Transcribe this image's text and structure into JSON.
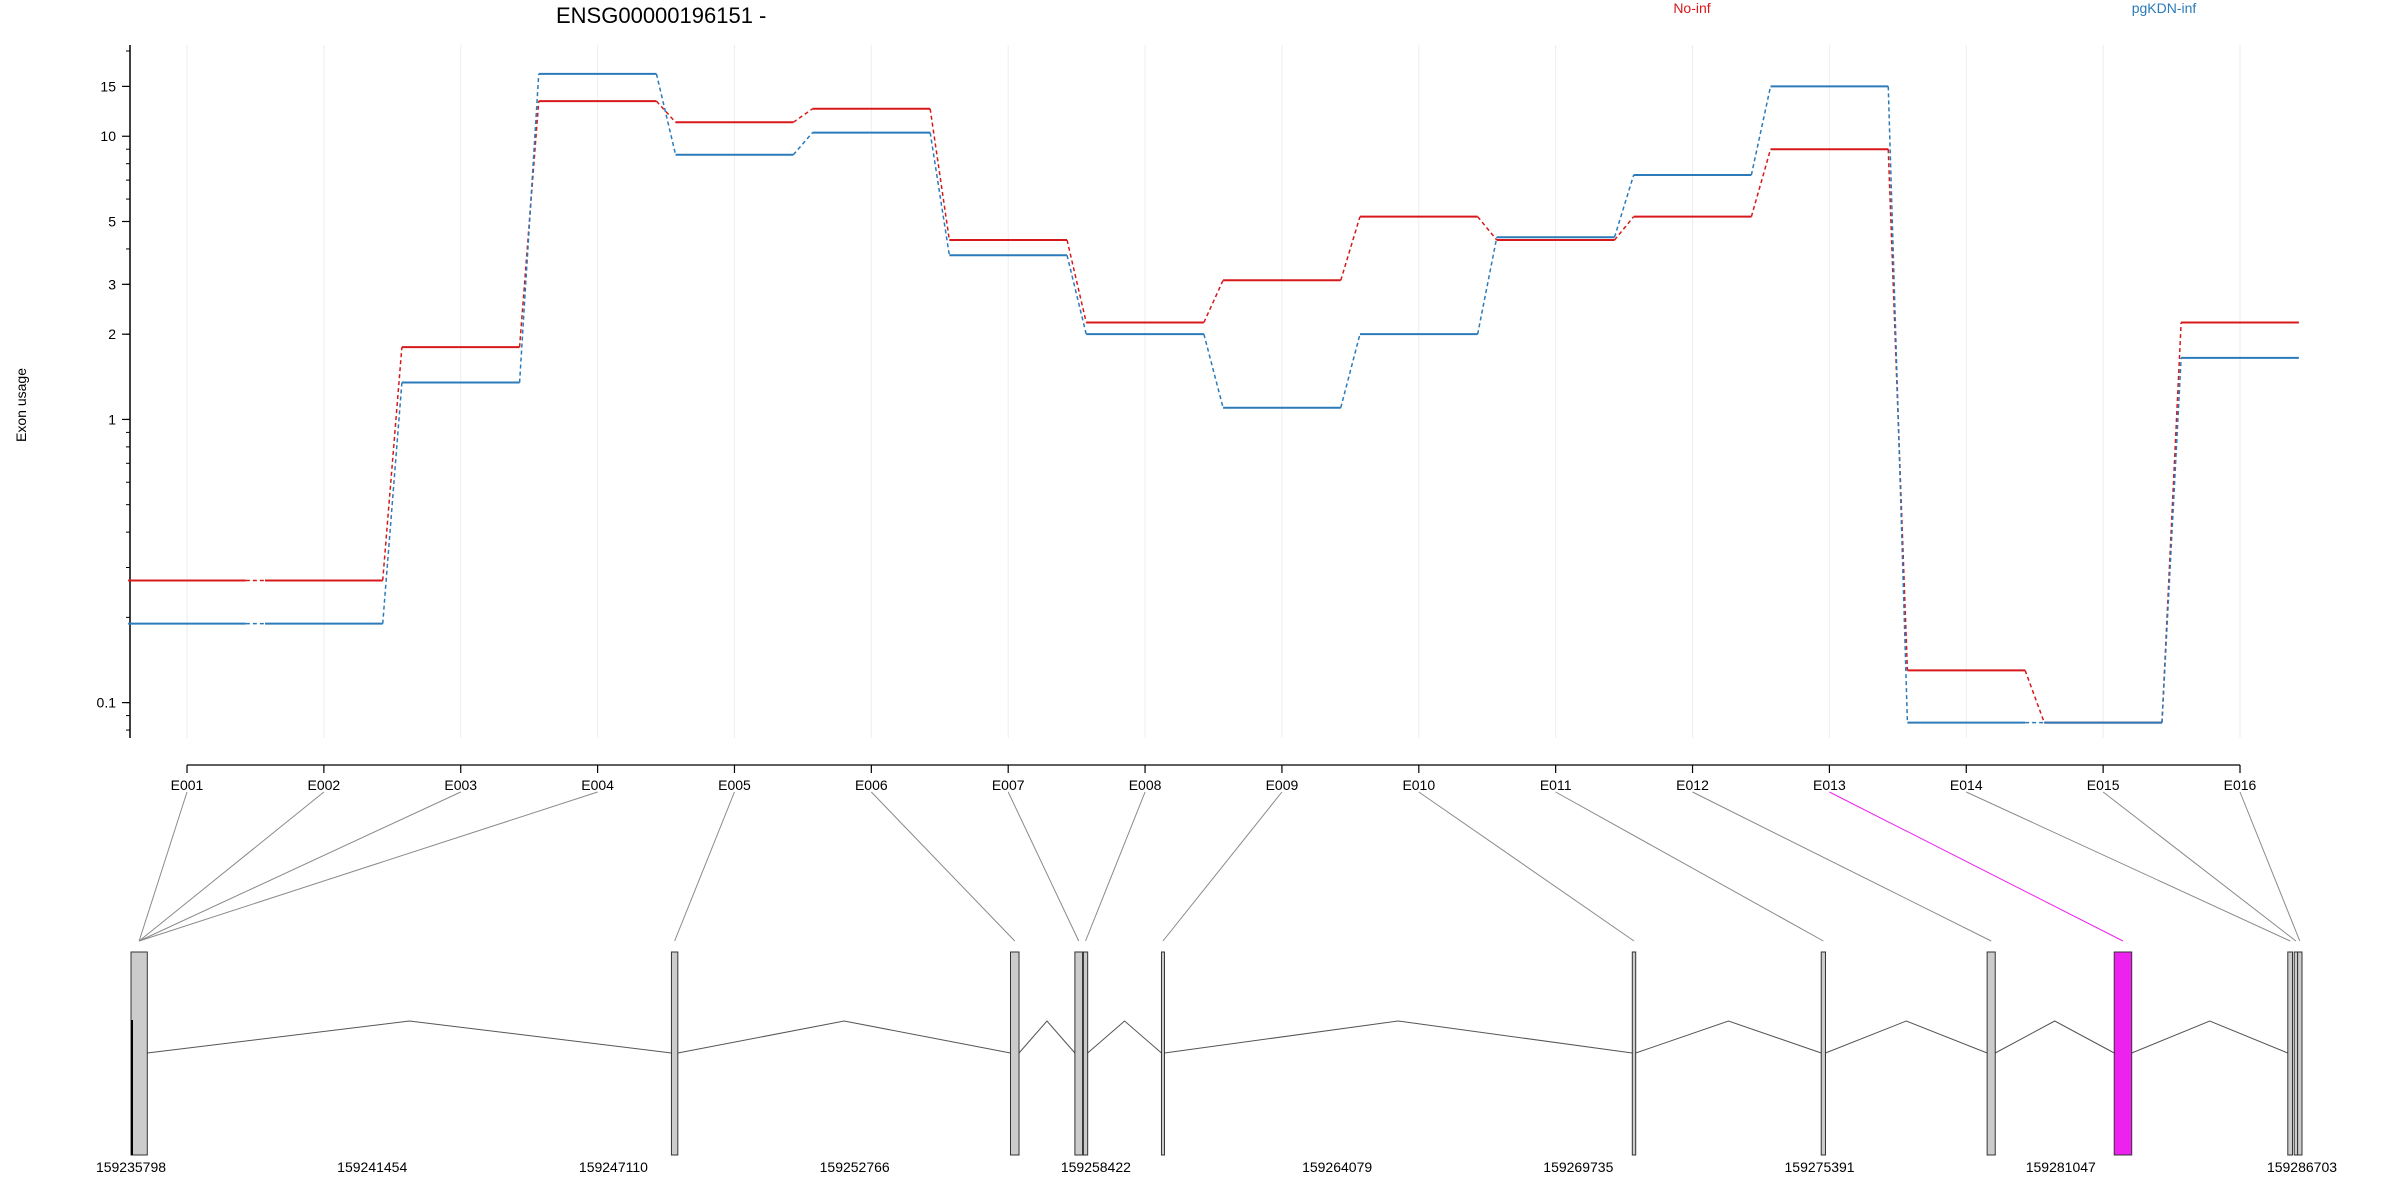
{
  "chart_data": {
    "type": "line",
    "title": "ENSG00000196151 -",
    "ylabel": "Exon usage",
    "y_scale": "log",
    "yticks": [
      0.1,
      1,
      2,
      3,
      5,
      10,
      15
    ],
    "ylim": [
      0.075,
      21
    ],
    "grid": "vertical, light",
    "legend_position": "top",
    "categories": [
      "E001",
      "E002",
      "E003",
      "E004",
      "E005",
      "E006",
      "E007",
      "E008",
      "E009",
      "E010",
      "E011",
      "E012",
      "E013",
      "E014",
      "E015",
      "E016"
    ],
    "series": [
      {
        "name": "No-inf",
        "color": "#d7191c",
        "values": [
          0.27,
          0.27,
          1.8,
          13.3,
          11.2,
          12.5,
          4.3,
          2.2,
          3.1,
          5.2,
          4.3,
          5.2,
          9.0,
          0.13,
          0.085,
          2.2
        ]
      },
      {
        "name": "pgKDN-inf",
        "color": "#2b7bba",
        "values": [
          0.19,
          0.19,
          1.35,
          16.6,
          8.6,
          10.3,
          3.8,
          2.0,
          1.1,
          2.0,
          4.4,
          7.3,
          15.0,
          0.085,
          0.085,
          1.65
        ]
      }
    ],
    "gene_model": {
      "coord_ticks": [
        "159235798",
        "159241454",
        "159247110",
        "159252766",
        "159258422",
        "159264079",
        "159269735",
        "159275391",
        "159281047",
        "159286703"
      ],
      "range": [
        159235798,
        159286703
      ],
      "highlight_exon": "E013",
      "highlight_color": "#ee22ee",
      "exon_color": "#cccccc",
      "exons": [
        {
          "id": "E001",
          "start": 159235798,
          "end": 159236180
        },
        {
          "id": "E002",
          "start": 159235798,
          "end": 159236180
        },
        {
          "id": "E003",
          "start": 159235798,
          "end": 159236180
        },
        {
          "id": "E004",
          "start": 159235798,
          "end": 159236180
        },
        {
          "id": "E005",
          "start": 159248470,
          "end": 159248620
        },
        {
          "id": "E006",
          "start": 159256420,
          "end": 159256620
        },
        {
          "id": "E007",
          "start": 159257930,
          "end": 159258110
        },
        {
          "id": "E008",
          "start": 159258130,
          "end": 159258230
        },
        {
          "id": "E009",
          "start": 159259960,
          "end": 159260030
        },
        {
          "id": "E010",
          "start": 159271000,
          "end": 159271080
        },
        {
          "id": "E011",
          "start": 159275430,
          "end": 159275530
        },
        {
          "id": "E012",
          "start": 159279320,
          "end": 159279510
        },
        {
          "id": "E013",
          "start": 159282300,
          "end": 159282710
        },
        {
          "id": "E014",
          "start": 159286370,
          "end": 159286480
        },
        {
          "id": "E015",
          "start": 159286520,
          "end": 159286600
        },
        {
          "id": "E016",
          "start": 159286600,
          "end": 159286703
        }
      ]
    }
  }
}
